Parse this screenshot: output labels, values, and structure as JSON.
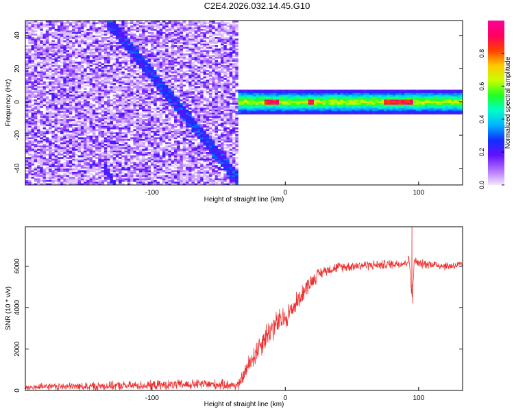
{
  "title": "C2E4.2026.032.14.45.G10",
  "chart_data": [
    {
      "type": "heatmap",
      "xlabel": "Height of straight line (km)",
      "ylabel": "Frequency (Hz)",
      "xlim": [
        -195,
        133
      ],
      "ylim": [
        -50,
        49
      ],
      "xticks": [
        -100,
        0,
        100
      ],
      "yticks": [
        -40,
        -20,
        0,
        20,
        40
      ],
      "xtick_labels": [
        "-100",
        "0",
        "100"
      ],
      "ytick_labels": [
        "-40",
        "-20",
        "0",
        "20",
        "40"
      ],
      "colorbar": {
        "label": "Normalized spectral amplitude",
        "range": [
          0,
          1
        ],
        "ticks": [
          0.0,
          0.2,
          0.4,
          0.6,
          0.8
        ],
        "tick_labels": [
          "0.0",
          "0.2",
          "0.4",
          "0.6",
          "0.8"
        ],
        "colormap": [
          "#f2e6ff",
          "#b070ff",
          "#6010ff",
          "#1030ff",
          "#00b4ff",
          "#00ffc8",
          "#20ff20",
          "#c8ff00",
          "#ffc800",
          "#ff4000",
          "#ff0060",
          "#ff0099"
        ]
      },
      "noise_region_x": [
        -195,
        -35
      ],
      "band_region_x": [
        -35,
        133
      ],
      "band_center_hz": 0,
      "band_halfwidth_hz": 3,
      "diagonal_track": {
        "x": [
          -130,
          -35
        ],
        "y": [
          46,
          -47
        ]
      },
      "secondary_track": {
        "x": [
          -135,
          -128
        ],
        "y": [
          -40,
          -50
        ]
      },
      "peak_segments_x": [
        [
          -15,
          -5
        ],
        [
          18,
          22
        ],
        [
          75,
          95
        ]
      ]
    },
    {
      "type": "line",
      "xlabel": "Height of straight line (km)",
      "ylabel": "SNR (10 * v/v)",
      "xlim": [
        -195,
        133
      ],
      "ylim": [
        0,
        7900
      ],
      "xticks": [
        -100,
        0,
        100
      ],
      "yticks": [
        0,
        2000,
        4000,
        6000
      ],
      "xtick_labels": [
        "-100",
        "0",
        "100"
      ],
      "ytick_labels": [
        "0",
        "2000",
        "4000",
        "6000"
      ],
      "series_color": "#ee3030",
      "trend": {
        "x": [
          -195,
          -150,
          -100,
          -60,
          -35,
          -30,
          -25,
          -20,
          -15,
          -10,
          -5,
          0,
          5,
          10,
          15,
          20,
          25,
          30,
          40,
          50,
          60,
          70,
          80,
          90,
          93,
          95,
          97,
          100,
          110,
          120,
          133
        ],
        "y": [
          150,
          200,
          250,
          300,
          250,
          900,
          1500,
          2100,
          2600,
          3000,
          3300,
          3500,
          3900,
          4400,
          4900,
          5300,
          5600,
          5800,
          5950,
          6000,
          6050,
          6050,
          6100,
          6150,
          6300,
          4500,
          6300,
          6100,
          6100,
          6000,
          6050
        ]
      },
      "noise_amplitude": {
        "x": [
          -195,
          -60,
          -35,
          -25,
          -10,
          0,
          15,
          30,
          133
        ],
        "y": [
          200,
          300,
          300,
          700,
          800,
          700,
          500,
          300,
          250
        ]
      },
      "spikes": [
        {
          "x": 95,
          "y": 7900
        },
        {
          "x": 95.5,
          "y": 4200
        }
      ]
    }
  ]
}
